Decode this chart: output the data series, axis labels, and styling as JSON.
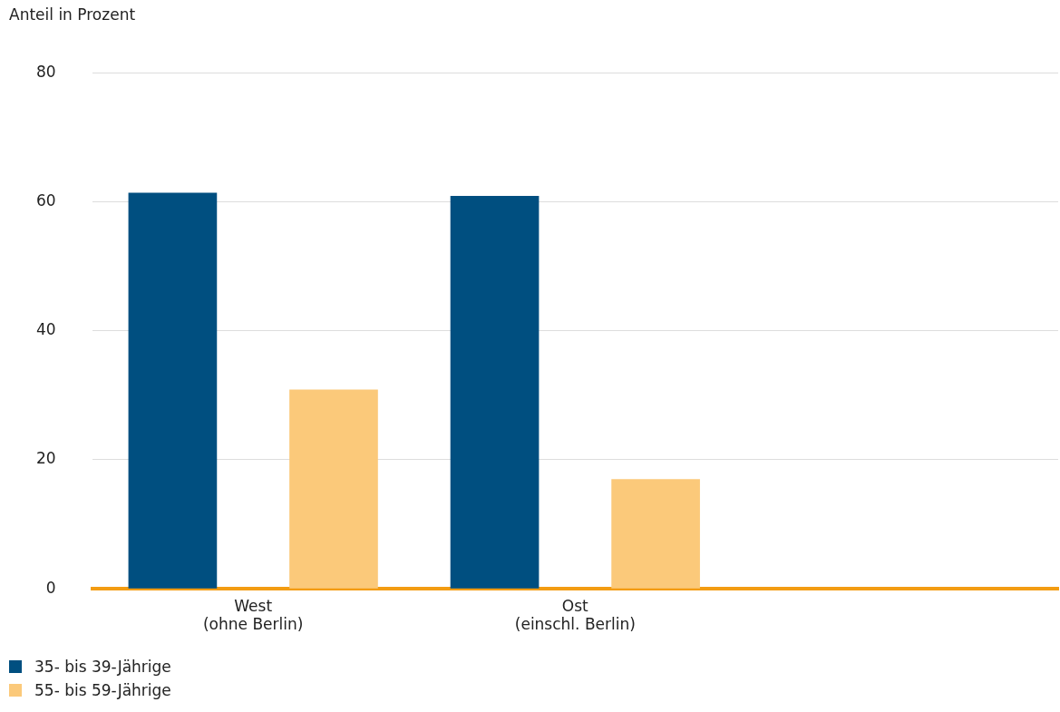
{
  "chart_data": {
    "type": "bar",
    "ylabel": "Anteil in Prozent",
    "categories": [
      "West (ohne Berlin)",
      "Ost (einschl. Berlin)",
      null
    ],
    "series": [
      {
        "name": "35- bis 39-Jährige",
        "color": "#004f80",
        "values": [
          61.4,
          60.9,
          null
        ]
      },
      {
        "name": "55- bis 59-Jährige",
        "color": "#fbc97a",
        "values": [
          30.9,
          17.0,
          null
        ]
      }
    ],
    "ylim": [
      0,
      80
    ],
    "yticks": [
      0,
      20,
      40,
      60,
      80
    ],
    "grid": "y",
    "legend": "bottom left"
  }
}
